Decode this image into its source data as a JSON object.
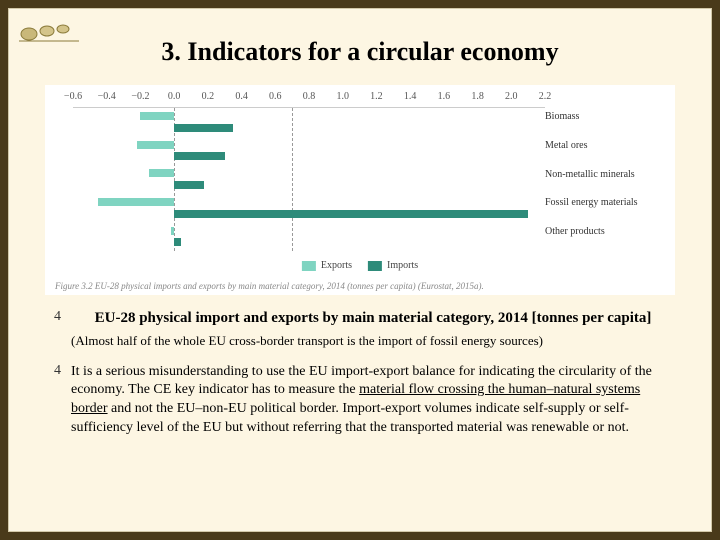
{
  "title": "3. Indicators for a circular economy",
  "chart": {
    "type": "bar-horizontal-diverging",
    "background_color": "#ffffff",
    "axis": {
      "min": -0.6,
      "max": 2.2,
      "ticks": [
        -0.6,
        -0.4,
        -0.2,
        0.0,
        0.2,
        0.4,
        0.6,
        0.8,
        1.0,
        1.2,
        1.4,
        1.6,
        1.8,
        2.0,
        2.2
      ],
      "tick_labels": [
        "−0.6",
        "−0.4",
        "−0.2",
        "0.0",
        "0.2",
        "0.4",
        "0.6",
        "0.8",
        "1.0",
        "1.2",
        "1.4",
        "1.6",
        "1.8",
        "2.0",
        "2.2"
      ],
      "tick_fontsize": 10,
      "tick_color": "#555555"
    },
    "reference_lines": [
      0.0,
      0.7
    ],
    "categories": [
      {
        "label": "Biomass",
        "exports": -0.2,
        "imports": 0.35
      },
      {
        "label": "Metal ores",
        "exports": -0.22,
        "imports": 0.3
      },
      {
        "label": "Non-metallic minerals",
        "exports": -0.15,
        "imports": 0.18
      },
      {
        "label": "Fossil energy materials",
        "exports": -0.45,
        "imports": 2.1
      },
      {
        "label": "Other products",
        "exports": -0.02,
        "imports": 0.04
      }
    ],
    "colors": {
      "exports": "#7fd4c1",
      "imports": "#2e8b7a",
      "refline": "#999999"
    },
    "legend": {
      "items": [
        {
          "label": "Exports",
          "color": "#7fd4c1"
        },
        {
          "label": "Imports",
          "color": "#2e8b7a"
        }
      ],
      "fontsize": 10
    },
    "figure_caption": "Figure 3.2 EU-28 physical imports and exports by main material category, 2014 (tonnes per capita) (Eurostat, 2015a)."
  },
  "bullets": {
    "marker": "4",
    "caption": "EU-28 physical import and exports by main material category, 2014 [tonnes per capita]",
    "subnote": "(Almost half of the whole EU cross-border transport is the import of fossil energy sources)",
    "body_pre": "It is a serious misunderstanding to use the EU import-export balance for indicating the circularity of the economy. The CE key indicator has to measure the ",
    "body_underline": "material flow crossing the human–natural systems border",
    "body_post": " and not the EU–non-EU political border. Import-export volumes indicate self-supply or self-sufficiency level of the EU but without referring that the transported material was renewable or not."
  },
  "style": {
    "page_bg": "#4a3a1a",
    "slide_bg": "#fdf6e3",
    "title_fontsize": 26,
    "body_fontsize": 14
  }
}
